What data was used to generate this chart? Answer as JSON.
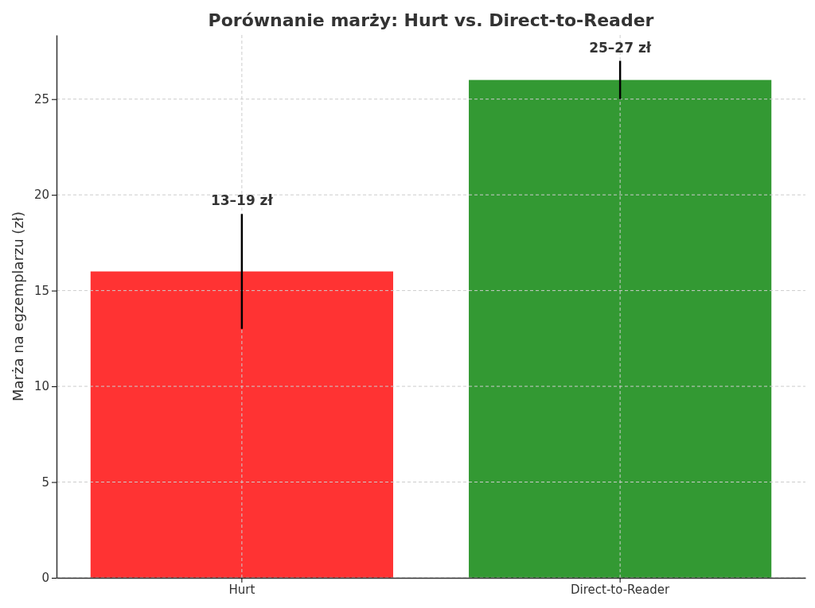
{
  "chart_data": {
    "type": "bar",
    "title": "Porównanie marży: Hurt vs. Direct-to-Reader",
    "ylabel": "Marża na egzemplarzu (zł)",
    "categories": [
      "Hurt",
      "Direct-to-Reader"
    ],
    "values": [
      16,
      26
    ],
    "colors": [
      "#ff3333",
      "#339933"
    ],
    "errors": [
      [
        13,
        19
      ],
      [
        25,
        27
      ]
    ],
    "ylim": [
      0,
      28.35
    ],
    "yticks": [
      0,
      5,
      10,
      15,
      20,
      25
    ],
    "grid": true,
    "annotations": [
      {
        "text": "13–19 zł",
        "x": "Hurt",
        "y": 19
      },
      {
        "text": "25–27 zł",
        "x": "Direct-to-Reader",
        "y": 27
      }
    ]
  }
}
